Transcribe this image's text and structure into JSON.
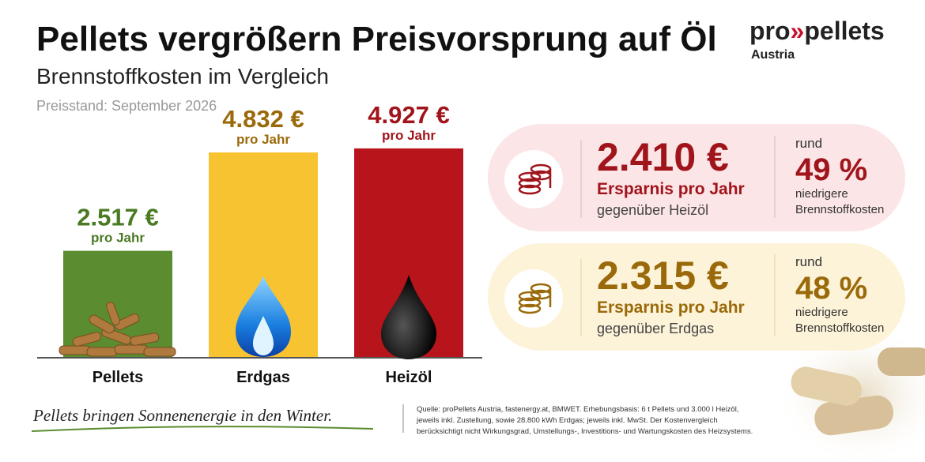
{
  "header": {
    "title": "Pellets vergrößern Preisvorsprung auf Öl",
    "subtitle": "Brennstoffkosten im Vergleich",
    "note": "Preisstand: September 2026"
  },
  "logo": {
    "prefix": "pro",
    "mark": "»",
    "suffix": "pellets",
    "region": "Austria"
  },
  "chart_data": {
    "type": "bar",
    "categories": [
      "Pellets",
      "Erdgas",
      "Heizöl"
    ],
    "values": [
      2517,
      4832,
      4927
    ],
    "value_labels": [
      "2.517 €",
      "4.832 €",
      "4.927 €"
    ],
    "period_label": "pro Jahr",
    "colors": [
      "#5b8c2f",
      "#f8c330",
      "#b8141c"
    ],
    "label_colors": [
      "#4b7a24",
      "#9a6a0a",
      "#a0151c"
    ]
  },
  "cards": [
    {
      "amount": "2.410 €",
      "caption": "Ersparnis pro Jahr",
      "comparison": "gegenüber Heizöl",
      "prefix": "rund",
      "percent": "49 %",
      "suffix_1": "niedrigere",
      "suffix_2": "Brennstoffkosten"
    },
    {
      "amount": "2.315 €",
      "caption": "Ersparnis pro Jahr",
      "comparison": "gegenüber Erdgas",
      "prefix": "rund",
      "percent": "48 %",
      "suffix_1": "niedrigere",
      "suffix_2": "Brennstoffkosten"
    }
  ],
  "footer": {
    "slogan": "Pellets bringen Sonnenenergie in den Winter.",
    "source": [
      "Quelle: proPellets Austria, fastenergy.at, BMWET. Erhebungsbasis: 6 t Pellets und 3.000 l Heizöl,",
      "jeweils inkl. Zustellung, sowie 28.800 kWh Erdgas; jeweils inkl. MwSt. Der Kostenvergleich",
      "berücksichtigt nicht Wirkungsgrad, Umstellungs-, Investitions- und Wartungskosten des Heizsystems."
    ]
  }
}
